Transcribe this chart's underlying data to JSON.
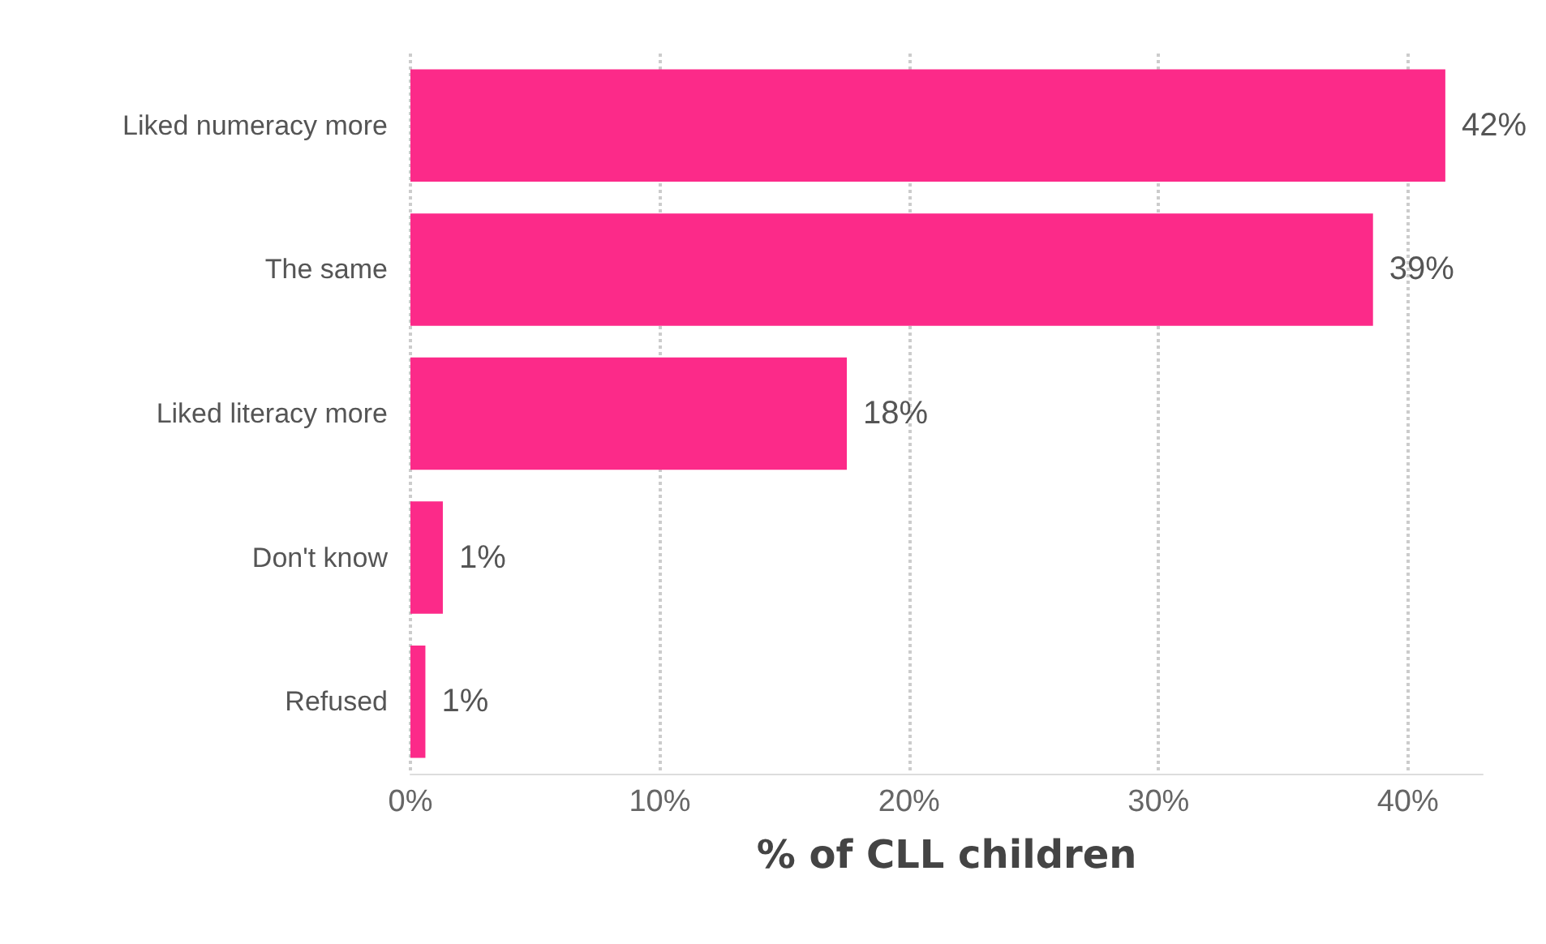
{
  "chart_data": {
    "type": "bar",
    "orientation": "horizontal",
    "xlabel": "% of CLL children",
    "categories": [
      "Liked numeracy more",
      "The same",
      "Liked literacy more",
      "Don't know",
      "Refused"
    ],
    "values": [
      41.5,
      38.6,
      17.5,
      1.3,
      0.6
    ],
    "value_labels": [
      "42%",
      "39%",
      "18%",
      "1%",
      "1%"
    ],
    "color": "#fc2a89",
    "xlim": [
      0,
      43
    ],
    "xticks": [
      {
        "value": 0,
        "label": "0%"
      },
      {
        "value": 10,
        "label": "10%"
      },
      {
        "value": 20,
        "label": "20%"
      },
      {
        "value": 30,
        "label": "30%"
      },
      {
        "value": 40,
        "label": "40%"
      }
    ],
    "grid": "x"
  }
}
